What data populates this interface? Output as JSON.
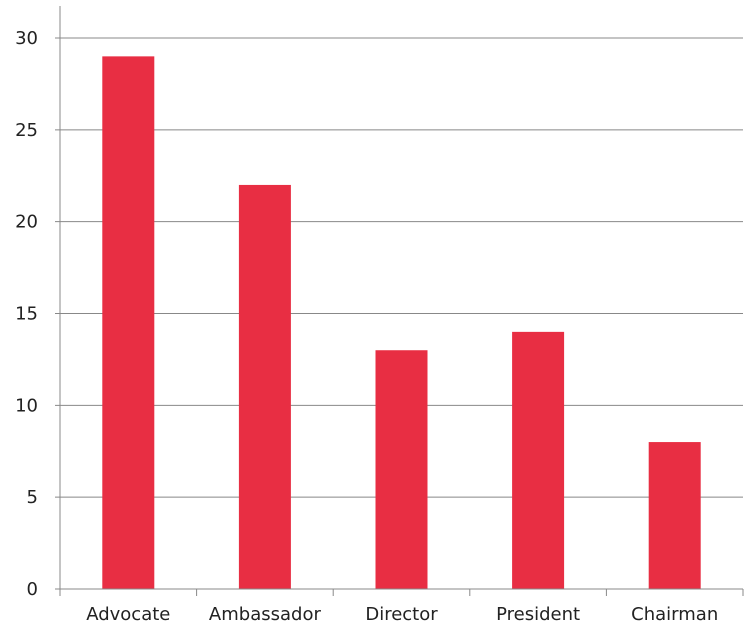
{
  "chart_data": {
    "type": "bar",
    "title": "",
    "xlabel": "",
    "ylabel": "",
    "categories": [
      "Advocate",
      "Ambassador",
      "Director",
      "President",
      "Chairman"
    ],
    "values": [
      29,
      22,
      13,
      14,
      8
    ],
    "ylim": [
      0,
      30
    ],
    "yticks": [
      0,
      5,
      10,
      15,
      20,
      25,
      30
    ],
    "grid": true,
    "bar_color": "#E82E43",
    "grid_color": "#888888"
  }
}
